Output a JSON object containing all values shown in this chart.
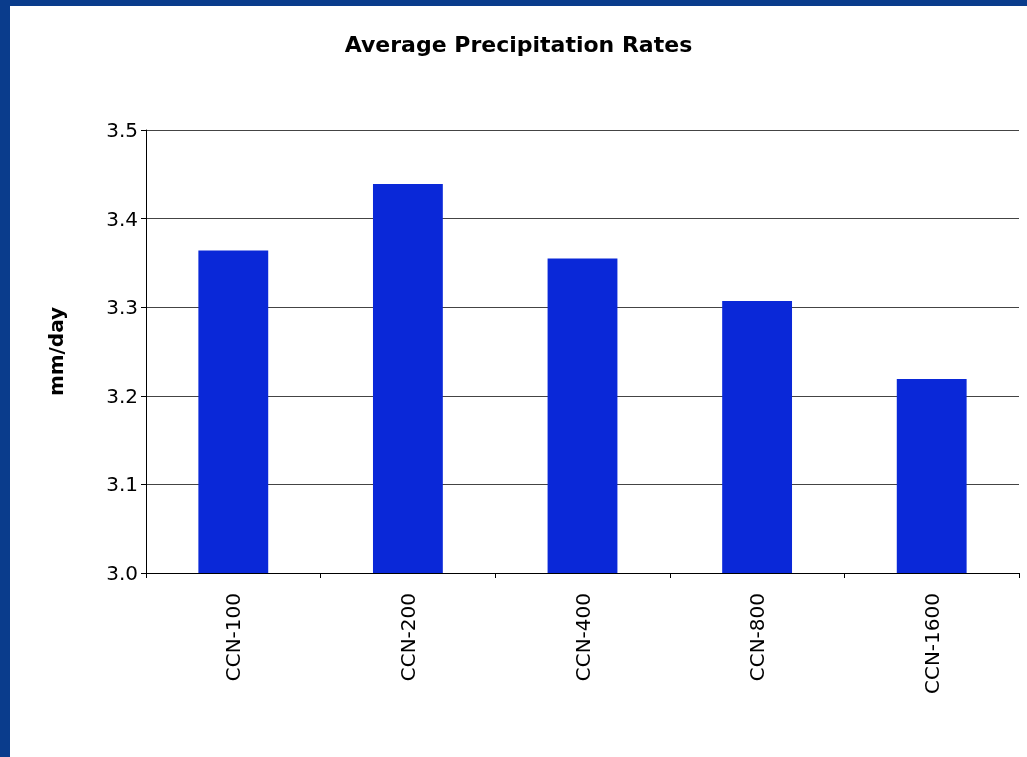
{
  "chart_data": {
    "type": "bar",
    "title": "Average Precipitation Rates",
    "ylabel": "mm/day",
    "categories": [
      "CCN-100",
      "CCN-200",
      "CCN-400",
      "CCN-800",
      "CCN-1600"
    ],
    "values": [
      3.364,
      3.439,
      3.355,
      3.307,
      3.219
    ],
    "color": "#0a28d8",
    "ylim": [
      3.0,
      3.5
    ],
    "yticks": [
      {
        "value": 3.0,
        "label": "3.0"
      },
      {
        "value": 3.1,
        "label": "3.1"
      },
      {
        "value": 3.2,
        "label": "3.2"
      },
      {
        "value": 3.3,
        "label": "3.3"
      },
      {
        "value": 3.4,
        "label": "3.4"
      },
      {
        "value": 3.5,
        "label": "3.5"
      }
    ],
    "grid": "y"
  }
}
